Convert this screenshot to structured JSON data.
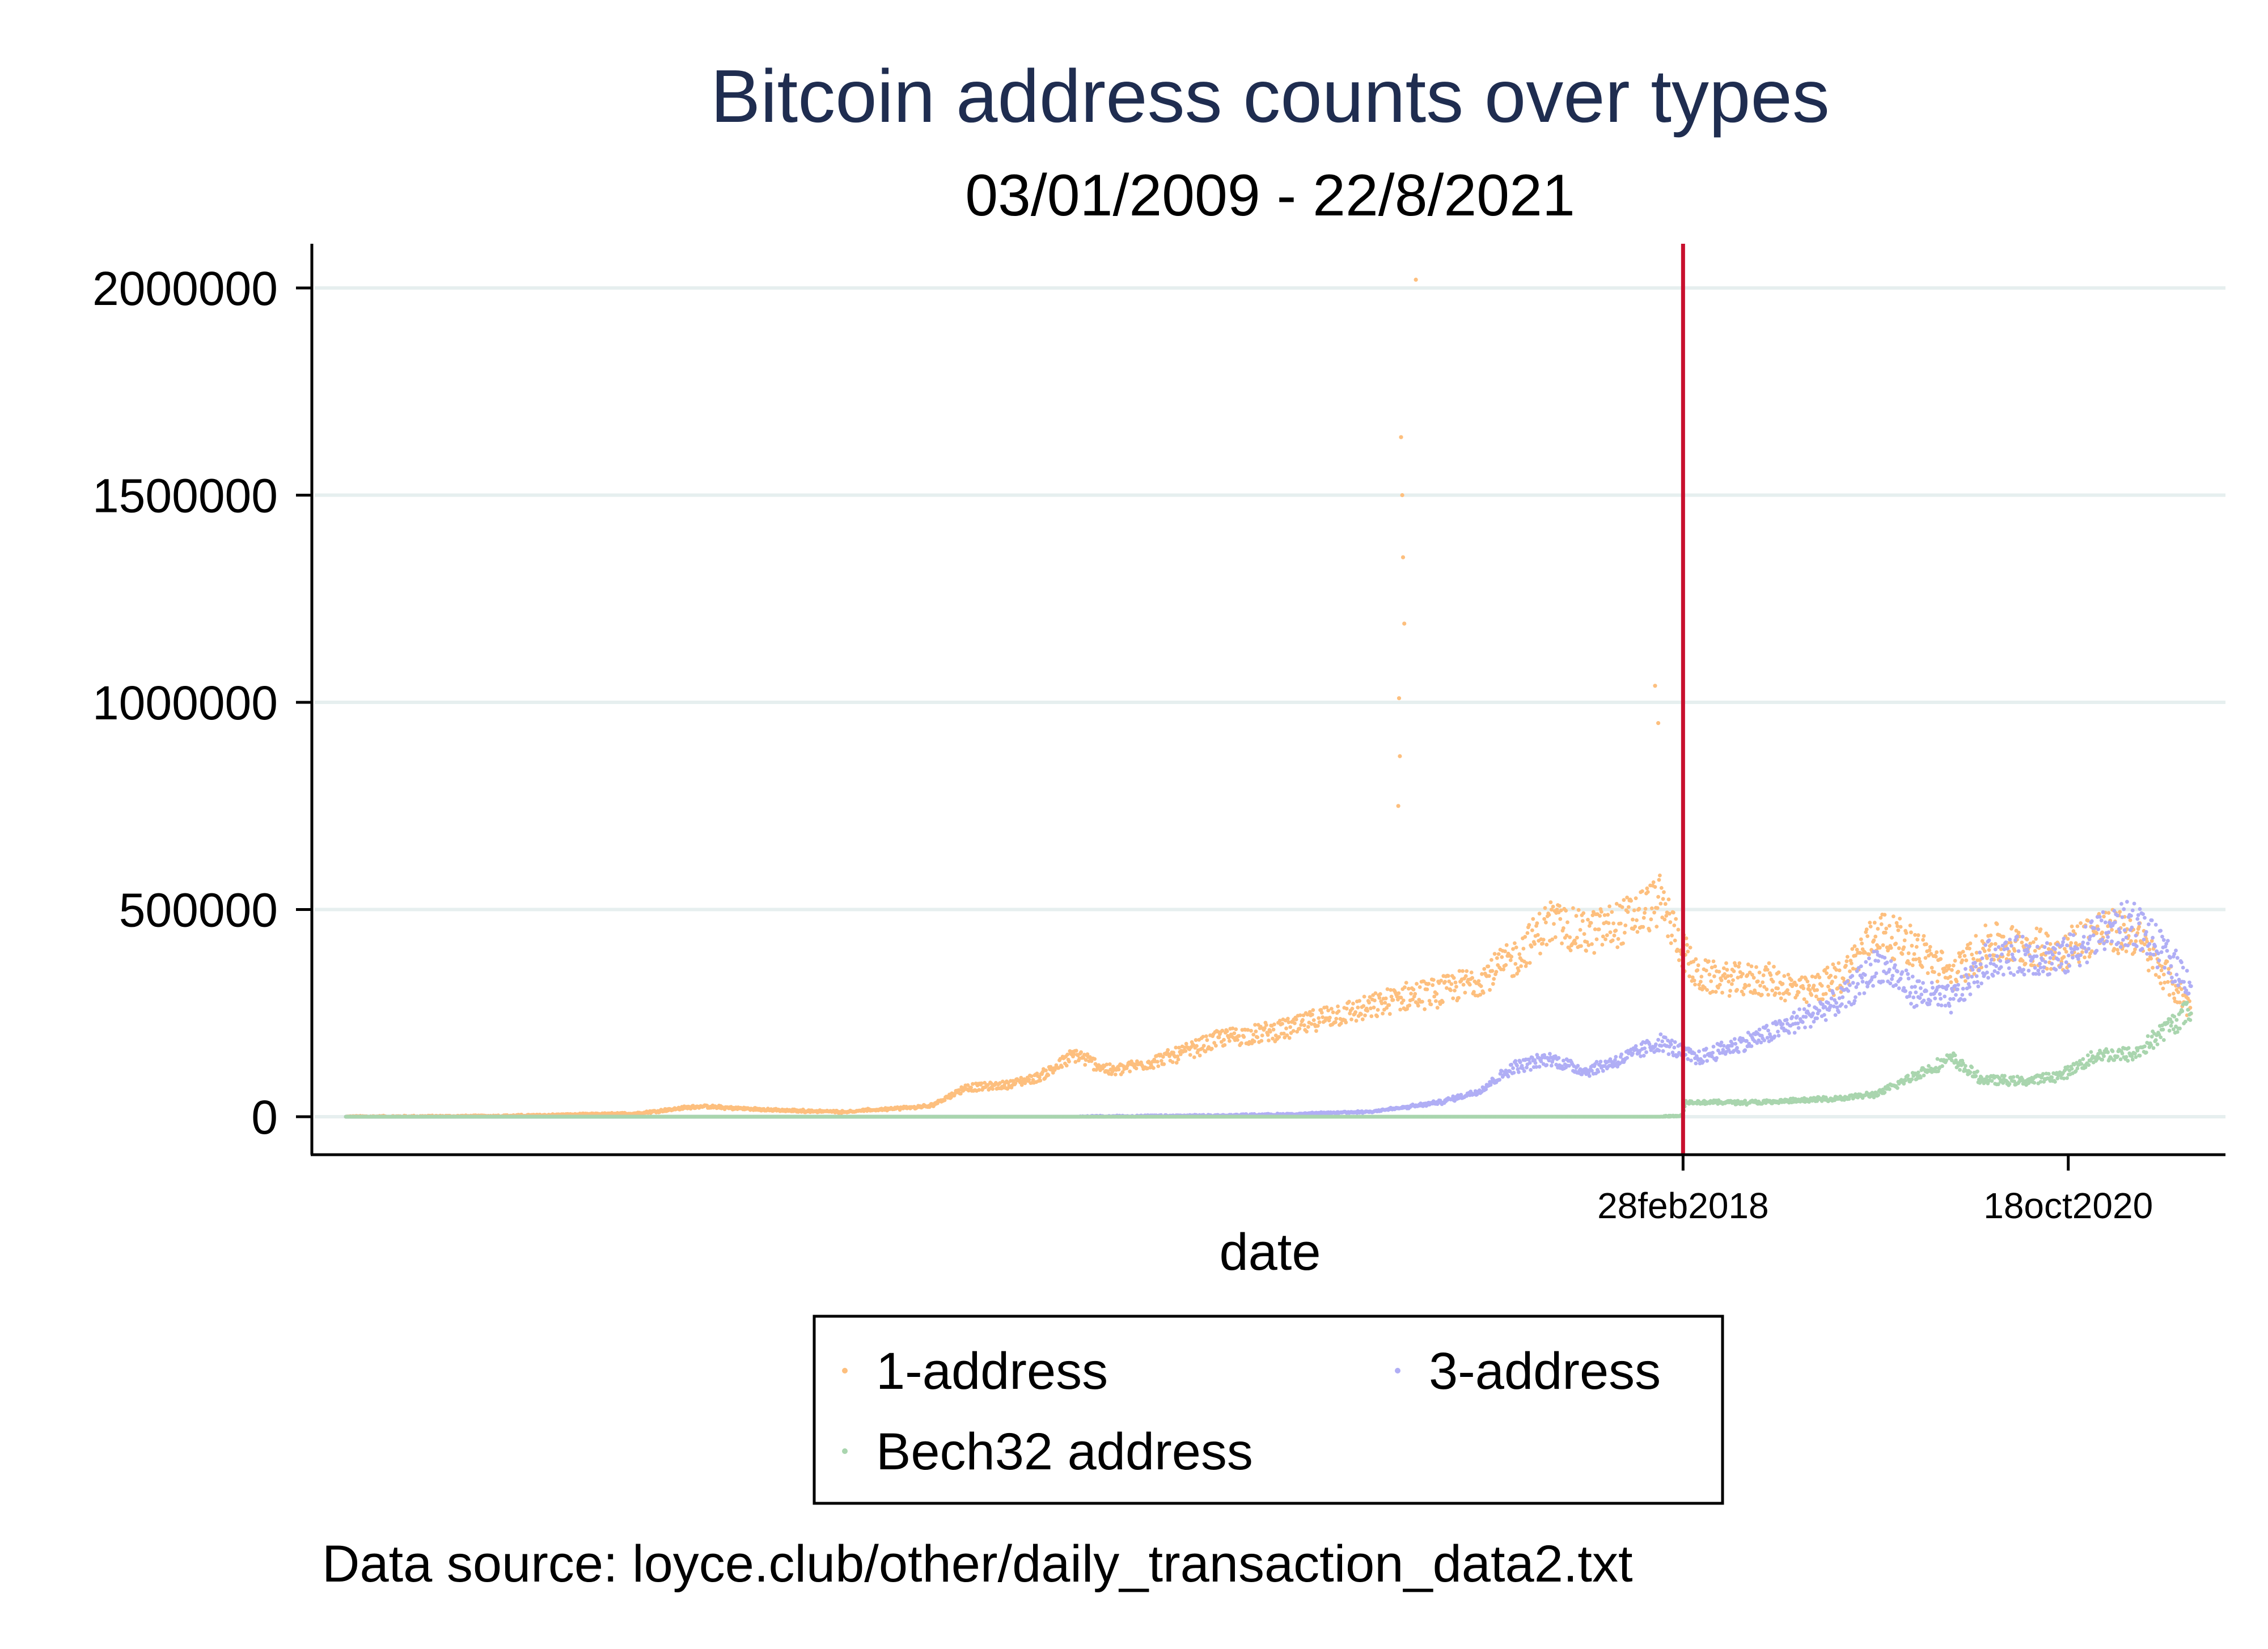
{
  "chart_data": {
    "type": "scatter",
    "title": "Bitcoin address counts over types",
    "subtitle": "03/01/2009 - 22/8/2021",
    "xlabel": "date",
    "ylabel": "",
    "ylim": [
      -90000,
      2100000
    ],
    "xlim": [
      "2009-01-03",
      "2021-08-22"
    ],
    "yticks": [
      0,
      500000,
      1000000,
      1500000,
      2000000
    ],
    "ytick_labels": [
      "0",
      "500000",
      "1000000",
      "1500000",
      "2000000"
    ],
    "xticks": [
      "2018-02-28",
      "2020-10-18"
    ],
    "xtick_labels": [
      "28feb2018",
      "18oct2020"
    ],
    "reference_line": {
      "x": "2018-02-28",
      "color": "#c8102e"
    },
    "grid": true,
    "legend_position": "bottom",
    "note": "Data source: loyce.club/other/daily_transaction_data2.txt",
    "series": [
      {
        "name": "1-address",
        "color": "#fdbf7e",
        "points": [
          [
            "2009-01-03",
            0
          ],
          [
            "2010-01-01",
            1500
          ],
          [
            "2011-01-01",
            8000
          ],
          [
            "2011-06-01",
            25000
          ],
          [
            "2012-01-01",
            15000
          ],
          [
            "2012-06-01",
            12000
          ],
          [
            "2013-01-01",
            25000
          ],
          [
            "2013-04-01",
            70000
          ],
          [
            "2013-07-01",
            75000
          ],
          [
            "2013-10-01",
            95000
          ],
          [
            "2014-01-01",
            150000
          ],
          [
            "2014-04-01",
            110000
          ],
          [
            "2014-07-01",
            130000
          ],
          [
            "2014-10-01",
            155000
          ],
          [
            "2015-01-01",
            190000
          ],
          [
            "2015-04-01",
            200000
          ],
          [
            "2015-07-01",
            215000
          ],
          [
            "2015-10-01",
            245000
          ],
          [
            "2016-01-01",
            260000
          ],
          [
            "2016-04-01",
            290000
          ],
          [
            "2016-07-01",
            300000
          ],
          [
            "2016-10-01",
            330000
          ],
          [
            "2017-01-01",
            380000
          ],
          [
            "2017-04-01",
            470000
          ],
          [
            "2017-07-01",
            440000
          ],
          [
            "2017-10-01",
            470000
          ],
          [
            "2018-01-01",
            520000
          ],
          [
            "2018-04-01",
            340000
          ],
          [
            "2018-07-01",
            330000
          ],
          [
            "2018-10-01",
            330000
          ],
          [
            "2019-01-01",
            300000
          ],
          [
            "2019-04-01",
            340000
          ],
          [
            "2019-07-01",
            450000
          ],
          [
            "2019-10-01",
            410000
          ],
          [
            "2020-01-01",
            340000
          ],
          [
            "2020-04-01",
            420000
          ],
          [
            "2020-07-01",
            410000
          ],
          [
            "2020-10-01",
            400000
          ],
          [
            "2021-01-01",
            450000
          ],
          [
            "2021-04-01",
            440000
          ],
          [
            "2021-08-22",
            260000
          ]
        ],
        "spikes": [
          [
            "2016-05-01",
            2020000
          ],
          [
            "2016-03-25",
            1640000
          ],
          [
            "2016-03-28",
            1500000
          ],
          [
            "2016-03-30",
            1350000
          ],
          [
            "2016-04-02",
            1190000
          ],
          [
            "2016-03-20",
            1010000
          ],
          [
            "2016-03-22",
            870000
          ],
          [
            "2016-03-18",
            750000
          ],
          [
            "2017-12-20",
            1040000
          ],
          [
            "2017-12-28",
            950000
          ]
        ]
      },
      {
        "name": "3-address",
        "color": "#b0aef5",
        "points": [
          [
            "2009-01-03",
            0
          ],
          [
            "2014-01-01",
            0
          ],
          [
            "2015-01-01",
            3000
          ],
          [
            "2015-07-01",
            6000
          ],
          [
            "2016-01-01",
            12000
          ],
          [
            "2016-04-01",
            22000
          ],
          [
            "2016-07-01",
            35000
          ],
          [
            "2016-10-01",
            60000
          ],
          [
            "2017-01-01",
            120000
          ],
          [
            "2017-04-01",
            140000
          ],
          [
            "2017-07-01",
            110000
          ],
          [
            "2017-10-01",
            140000
          ],
          [
            "2018-01-01",
            180000
          ],
          [
            "2018-04-01",
            140000
          ],
          [
            "2018-07-01",
            170000
          ],
          [
            "2018-10-01",
            200000
          ],
          [
            "2019-01-01",
            240000
          ],
          [
            "2019-04-01",
            280000
          ],
          [
            "2019-07-01",
            370000
          ],
          [
            "2019-10-01",
            300000
          ],
          [
            "2020-01-01",
            280000
          ],
          [
            "2020-04-01",
            380000
          ],
          [
            "2020-07-01",
            390000
          ],
          [
            "2020-10-01",
            380000
          ],
          [
            "2021-01-01",
            440000
          ],
          [
            "2021-04-01",
            470000
          ],
          [
            "2021-08-22",
            320000
          ]
        ],
        "spikes": []
      },
      {
        "name": "Bech32 address",
        "color": "#a9d5ae",
        "points": [
          [
            "2009-01-03",
            0
          ],
          [
            "2017-12-31",
            0
          ],
          [
            "2018-02-28",
            3000
          ],
          [
            "2018-03-05",
            35000
          ],
          [
            "2018-10-01",
            35000
          ],
          [
            "2019-04-01",
            45000
          ],
          [
            "2019-07-01",
            55000
          ],
          [
            "2019-10-01",
            100000
          ],
          [
            "2020-01-01",
            140000
          ],
          [
            "2020-03-15",
            90000
          ],
          [
            "2020-07-01",
            85000
          ],
          [
            "2020-10-01",
            100000
          ],
          [
            "2021-01-01",
            150000
          ],
          [
            "2021-04-01",
            150000
          ],
          [
            "2021-08-22",
            260000
          ]
        ],
        "spikes": []
      }
    ]
  }
}
